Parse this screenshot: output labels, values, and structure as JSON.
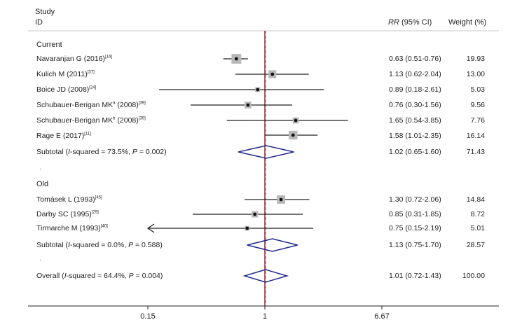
{
  "header": {
    "study": "Study",
    "id": "ID",
    "rr_prefix": "RR",
    "rr_suffix": " (95% CI)",
    "weight": "Weight (%)"
  },
  "groups": {
    "current": "Current",
    "old": "Old",
    "separator": "."
  },
  "rows": [
    {
      "label": "Navaranjan G (2016)",
      "ref": "[16]",
      "estimate": "0.63 (0.51-0.76)",
      "weight": "19.93"
    },
    {
      "label": "Kulich M (2011)",
      "ref": "[37]",
      "estimate": "1.13 (0.62-2.04)",
      "weight": "13.00"
    },
    {
      "label": "Boice JD (2008)",
      "ref": "[24]",
      "estimate": "0.89 (0.18-2.61)",
      "weight": "5.03"
    },
    {
      "label": "Schubauer-Berigan MK",
      "sup1": "a",
      "label2": " (2008)",
      "ref": "[39]",
      "estimate": "0.76 (0.30-1.56)",
      "weight": "9.56"
    },
    {
      "label": "Schubauer-Berigan MK",
      "sup1": "b",
      "label2": " (2008)",
      "ref": "[39]",
      "estimate": "1.65 (0.54-3.85)",
      "weight": "7.76"
    },
    {
      "label": "Rage E (2017)",
      "ref": "[11]",
      "estimate": "1.58 (1.01-2.35)",
      "weight": "16.14"
    },
    {
      "label": "Tomásek L (1993)",
      "ref": "[45]",
      "estimate": "1.30 (0.72-2.06)",
      "weight": "14.84"
    },
    {
      "label": "Darby SC (1995)",
      "ref": "[29]",
      "estimate": "0.85 (0.31-1.85)",
      "weight": "8.72"
    },
    {
      "label": "Tirmarche M (1993)",
      "ref": "[40]",
      "estimate": "0.75 (0.15-2.19)",
      "weight": "5.01"
    }
  ],
  "subtotals": [
    {
      "prefix": "Subtotal (",
      "i": "I",
      "mid": "-squared = 73.5%, ",
      "p": "P",
      "tail": " = 0.002)",
      "estimate": "1.02 (0.65-1.60)",
      "weight": "71.43"
    },
    {
      "prefix": "Subtotal (",
      "i": "I",
      "mid": "-squared = 0.0%, ",
      "p": "P",
      "tail": " = 0.588)",
      "estimate": "1.13 (0.75-1.70)",
      "weight": "28.57"
    }
  ],
  "overall": {
    "prefix": "Overall (",
    "i": "I",
    "mid": "-squared = 64.4%, ",
    "p": "P",
    "tail": " = 0.004)",
    "estimate": "1.01 (0.72-1.43)",
    "weight": "100.00"
  },
  "axis": {
    "ticks": [
      "0.15",
      "1",
      "6.67"
    ]
  },
  "colors": {
    "diamond": "#1f2a8a",
    "marker_box": "#b8b8b8",
    "null_line": "#7a2a2a",
    "overall_line": "#cc3333"
  },
  "chart_data": {
    "type": "forest",
    "x_scale": "log",
    "xlim": [
      0.15,
      6.67
    ],
    "x_ticks": [
      0.15,
      1,
      6.67
    ],
    "null_line": 1,
    "studies": [
      {
        "name": "Navaranjan G (2016)",
        "group": "Current",
        "rr": 0.63,
        "ci": [
          0.51,
          0.76
        ],
        "weight": 19.93
      },
      {
        "name": "Kulich M (2011)",
        "group": "Current",
        "rr": 1.13,
        "ci": [
          0.62,
          2.04
        ],
        "weight": 13.0
      },
      {
        "name": "Boice JD (2008)",
        "group": "Current",
        "rr": 0.89,
        "ci": [
          0.18,
          2.61
        ],
        "weight": 5.03
      },
      {
        "name": "Schubauer-Berigan MK a (2008)",
        "group": "Current",
        "rr": 0.76,
        "ci": [
          0.3,
          1.56
        ],
        "weight": 9.56
      },
      {
        "name": "Schubauer-Berigan MK b (2008)",
        "group": "Current",
        "rr": 1.65,
        "ci": [
          0.54,
          3.85
        ],
        "weight": 7.76
      },
      {
        "name": "Rage E (2017)",
        "group": "Current",
        "rr": 1.58,
        "ci": [
          1.01,
          2.35
        ],
        "weight": 16.14
      },
      {
        "name": "Tomásek L (1993)",
        "group": "Old",
        "rr": 1.3,
        "ci": [
          0.72,
          2.06
        ],
        "weight": 14.84
      },
      {
        "name": "Darby SC (1995)",
        "group": "Old",
        "rr": 0.85,
        "ci": [
          0.31,
          1.85
        ],
        "weight": 8.72
      },
      {
        "name": "Tirmarche M (1993)",
        "group": "Old",
        "rr": 0.75,
        "ci": [
          0.15,
          2.19
        ],
        "weight": 5.01
      }
    ],
    "pooled": [
      {
        "name": "Subtotal Current",
        "rr": 1.02,
        "ci": [
          0.65,
          1.6
        ],
        "weight": 71.43
      },
      {
        "name": "Subtotal Old",
        "rr": 1.13,
        "ci": [
          0.75,
          1.7
        ],
        "weight": 28.57
      },
      {
        "name": "Overall",
        "rr": 1.01,
        "ci": [
          0.72,
          1.43
        ],
        "weight": 100.0
      }
    ]
  }
}
